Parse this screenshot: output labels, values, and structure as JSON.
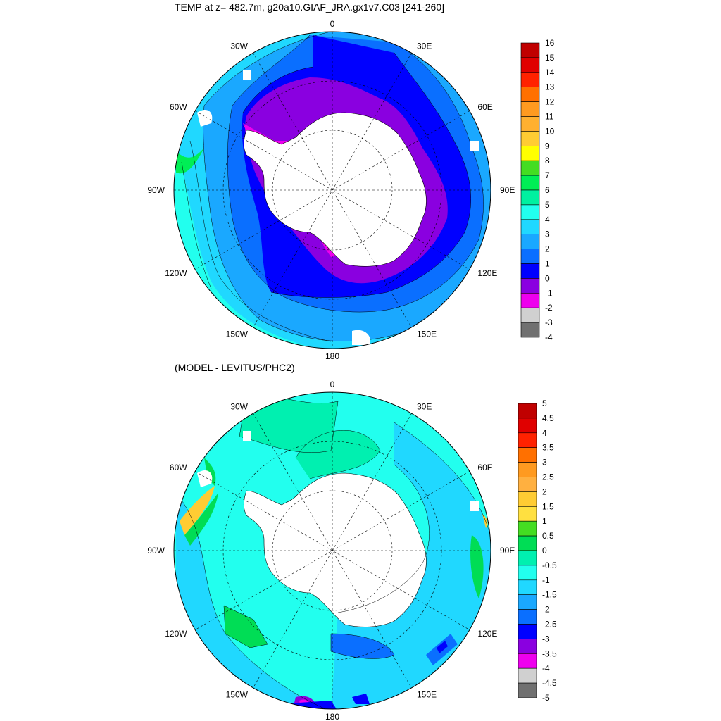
{
  "top_panel": {
    "title": "TEMP at z= 482.7m, g20a10.GIAF_JRA.gx1v7.C03 [241-260]",
    "meridian_labels": [
      {
        "lon": 0,
        "label": "0"
      },
      {
        "lon": 30,
        "label": "30E"
      },
      {
        "lon": 60,
        "label": "60E"
      },
      {
        "lon": 90,
        "label": "90E"
      },
      {
        "lon": 120,
        "label": "120E"
      },
      {
        "lon": 150,
        "label": "150E"
      },
      {
        "lon": 180,
        "label": "180"
      },
      {
        "lon": -150,
        "label": "150W"
      },
      {
        "lon": -120,
        "label": "120W"
      },
      {
        "lon": -90,
        "label": "90W"
      },
      {
        "lon": -60,
        "label": "60W"
      },
      {
        "lon": -30,
        "label": "30W"
      }
    ],
    "colorbar": {
      "labels": [
        "16",
        "15",
        "14",
        "13",
        "12",
        "11",
        "10",
        "9",
        "8",
        "7",
        "6",
        "5",
        "4",
        "3",
        "2",
        "1",
        "0",
        "-1",
        "-2",
        "-3",
        "-4"
      ],
      "colors": [
        "#c00000",
        "#e00000",
        "#ff2200",
        "#ff7000",
        "#ff9a20",
        "#ffb030",
        "#ffcc33",
        "#ffff00",
        "#44dd22",
        "#00ee55",
        "#00f0a0",
        "#22ffee",
        "#20d8ff",
        "#1aa8ff",
        "#0a6fff",
        "#0000ff",
        "#8a00e0",
        "#ee00ee",
        "#d0d0d0",
        "#707070"
      ]
    }
  },
  "bottom_panel": {
    "title": "(MODEL - LEVITUS/PHC2)",
    "meridian_labels": [
      {
        "lon": 0,
        "label": "0"
      },
      {
        "lon": 30,
        "label": "30E"
      },
      {
        "lon": 60,
        "label": "60E"
      },
      {
        "lon": 90,
        "label": "90E"
      },
      {
        "lon": 120,
        "label": "120E"
      },
      {
        "lon": 150,
        "label": "150E"
      },
      {
        "lon": 180,
        "label": "180"
      },
      {
        "lon": -150,
        "label": "150W"
      },
      {
        "lon": -120,
        "label": "120W"
      },
      {
        "lon": -90,
        "label": "90W"
      },
      {
        "lon": -60,
        "label": "60W"
      },
      {
        "lon": -30,
        "label": "30W"
      }
    ],
    "colorbar": {
      "labels": [
        "5",
        "4.5",
        "4",
        "3.5",
        "3",
        "2.5",
        "2",
        "1.5",
        "1",
        "0.5",
        "0",
        "-0.5",
        "-1",
        "-1.5",
        "-2",
        "-2.5",
        "-3",
        "-3.5",
        "-4",
        "-4.5",
        "-5"
      ],
      "colors": [
        "#c00000",
        "#e00000",
        "#ff2200",
        "#ff7000",
        "#ff9a20",
        "#ffb040",
        "#ffcc33",
        "#ffe040",
        "#44dd22",
        "#00dd55",
        "#00f0b0",
        "#22ffee",
        "#20d8ff",
        "#1aa8ff",
        "#0a6fff",
        "#0000ff",
        "#8a00e0",
        "#ee00ee",
        "#d0d0d0",
        "#707070"
      ]
    }
  }
}
